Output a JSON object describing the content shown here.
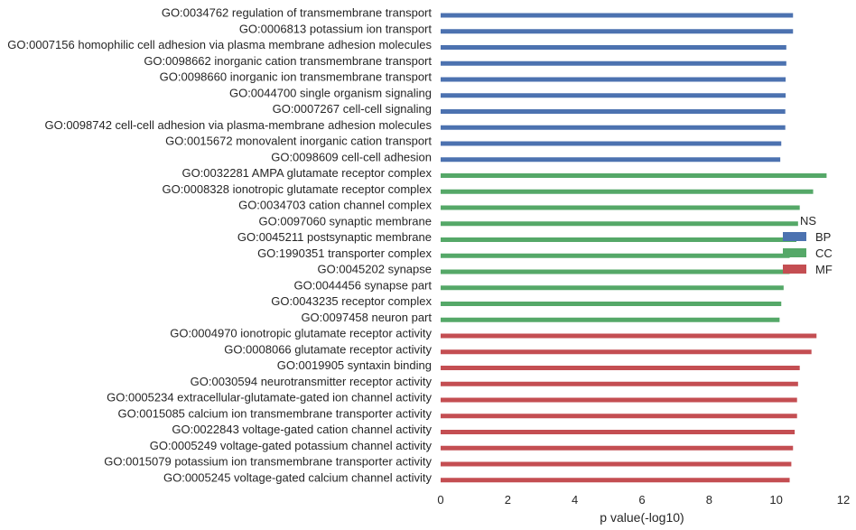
{
  "chart_data": {
    "type": "bar",
    "orientation": "horizontal",
    "xlabel": "p value(-log10)",
    "ylabel": "",
    "xlim": [
      0,
      12
    ],
    "xticks": [
      "0",
      "2",
      "4",
      "6",
      "8",
      "10",
      "12"
    ],
    "grid": false,
    "legend": {
      "placement": "center-right",
      "title": "NS",
      "entries": [
        {
          "name": "BP",
          "color": "#4c72b0"
        },
        {
          "name": "CC",
          "color": "#55a868"
        },
        {
          "name": "MF",
          "color": "#c44e52"
        }
      ]
    },
    "categories": [
      "GO:0034762 regulation of transmembrane transport",
      "GO:0006813 potassium ion transport",
      "GO:0007156 homophilic cell adhesion via plasma membrane adhesion molecules",
      "GO:0098662 inorganic cation transmembrane transport",
      "GO:0098660 inorganic ion transmembrane transport",
      "GO:0044700 single organism signaling",
      "GO:0007267 cell-cell signaling",
      "GO:0098742 cell-cell adhesion via plasma-membrane adhesion molecules",
      "GO:0015672 monovalent inorganic cation transport",
      "GO:0098609 cell-cell adhesion",
      "GO:0032281 AMPA glutamate receptor complex",
      "GO:0008328 ionotropic glutamate receptor complex",
      "GO:0034703 cation channel complex",
      "GO:0097060 synaptic membrane",
      "GO:0045211 postsynaptic membrane",
      "GO:1990351 transporter complex",
      "GO:0045202 synapse",
      "GO:0044456 synapse part",
      "GO:0043235 receptor complex",
      "GO:0097458 neuron part",
      "GO:0004970 ionotropic glutamate receptor activity",
      "GO:0008066 glutamate receptor activity",
      "GO:0019905 syntaxin binding",
      "GO:0030594 neurotransmitter receptor activity",
      "GO:0005234 extracellular-glutamate-gated ion channel activity",
      "GO:0015085 calcium ion transmembrane transporter activity",
      "GO:0022843 voltage-gated cation channel activity",
      "GO:0005249 voltage-gated potassium channel activity",
      "GO:0015079 potassium ion transmembrane transporter activity",
      "GO:0005245 voltage-gated calcium channel activity"
    ],
    "groups": [
      "BP",
      "BP",
      "BP",
      "BP",
      "BP",
      "BP",
      "BP",
      "BP",
      "BP",
      "BP",
      "CC",
      "CC",
      "CC",
      "CC",
      "CC",
      "CC",
      "CC",
      "CC",
      "CC",
      "CC",
      "MF",
      "MF",
      "MF",
      "MF",
      "MF",
      "MF",
      "MF",
      "MF",
      "MF",
      "MF"
    ],
    "values": [
      10.5,
      10.5,
      10.3,
      10.3,
      10.28,
      10.28,
      10.27,
      10.27,
      10.15,
      10.12,
      11.5,
      11.1,
      10.7,
      10.65,
      10.6,
      10.4,
      10.4,
      10.22,
      10.15,
      10.1,
      11.2,
      11.05,
      10.7,
      10.65,
      10.62,
      10.62,
      10.55,
      10.5,
      10.45,
      10.4
    ]
  }
}
